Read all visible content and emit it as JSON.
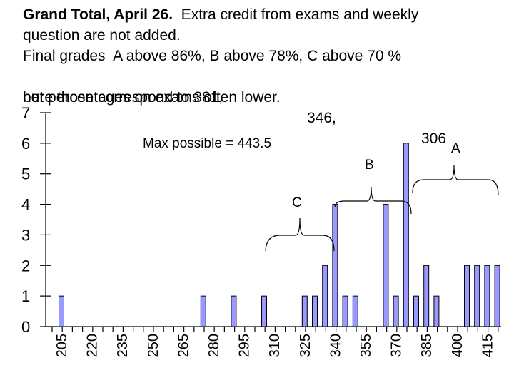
{
  "header": {
    "line1_bold": "Grand Total, April 26.",
    "line1_rest": "  Extra credit from exams and weekly",
    "line2": "question are not added.",
    "line3": "Final grades  A above 86%, B above 78%, C above 70 %",
    "line4_prefix": "here those correspond to 381,",
    "line4_b": "346,",
    "line4_c": "306",
    "line5": "but percentages on exams often lower."
  },
  "chart_data": {
    "type": "bar",
    "bin_width": 5,
    "x_tick_labels": [
      "205",
      "220",
      "235",
      "250",
      "265",
      "280",
      "295",
      "310",
      "325",
      "340",
      "355",
      "370",
      "385",
      "400",
      "415"
    ],
    "bins": [
      {
        "x": 205,
        "count": 1
      },
      {
        "x": 275,
        "count": 1
      },
      {
        "x": 290,
        "count": 1
      },
      {
        "x": 305,
        "count": 1
      },
      {
        "x": 325,
        "count": 1
      },
      {
        "x": 330,
        "count": 1
      },
      {
        "x": 335,
        "count": 2
      },
      {
        "x": 340,
        "count": 4
      },
      {
        "x": 345,
        "count": 1
      },
      {
        "x": 350,
        "count": 1
      },
      {
        "x": 365,
        "count": 4
      },
      {
        "x": 370,
        "count": 1
      },
      {
        "x": 375,
        "count": 6
      },
      {
        "x": 380,
        "count": 1
      },
      {
        "x": 385,
        "count": 2
      },
      {
        "x": 390,
        "count": 1
      },
      {
        "x": 405,
        "count": 2
      },
      {
        "x": 410,
        "count": 2
      },
      {
        "x": 415,
        "count": 2
      },
      {
        "x": 420,
        "count": 2
      }
    ],
    "xlim": [
      205,
      420
    ],
    "ylim": [
      0,
      7
    ],
    "y_ticks": [
      0,
      1,
      2,
      3,
      4,
      5,
      6,
      7
    ],
    "grid": false,
    "bar_color": "#9999ff",
    "annotations": {
      "max_possible": "Max possible = 443.5",
      "grade_c": "C",
      "grade_b": "B",
      "grade_a": "A"
    }
  }
}
